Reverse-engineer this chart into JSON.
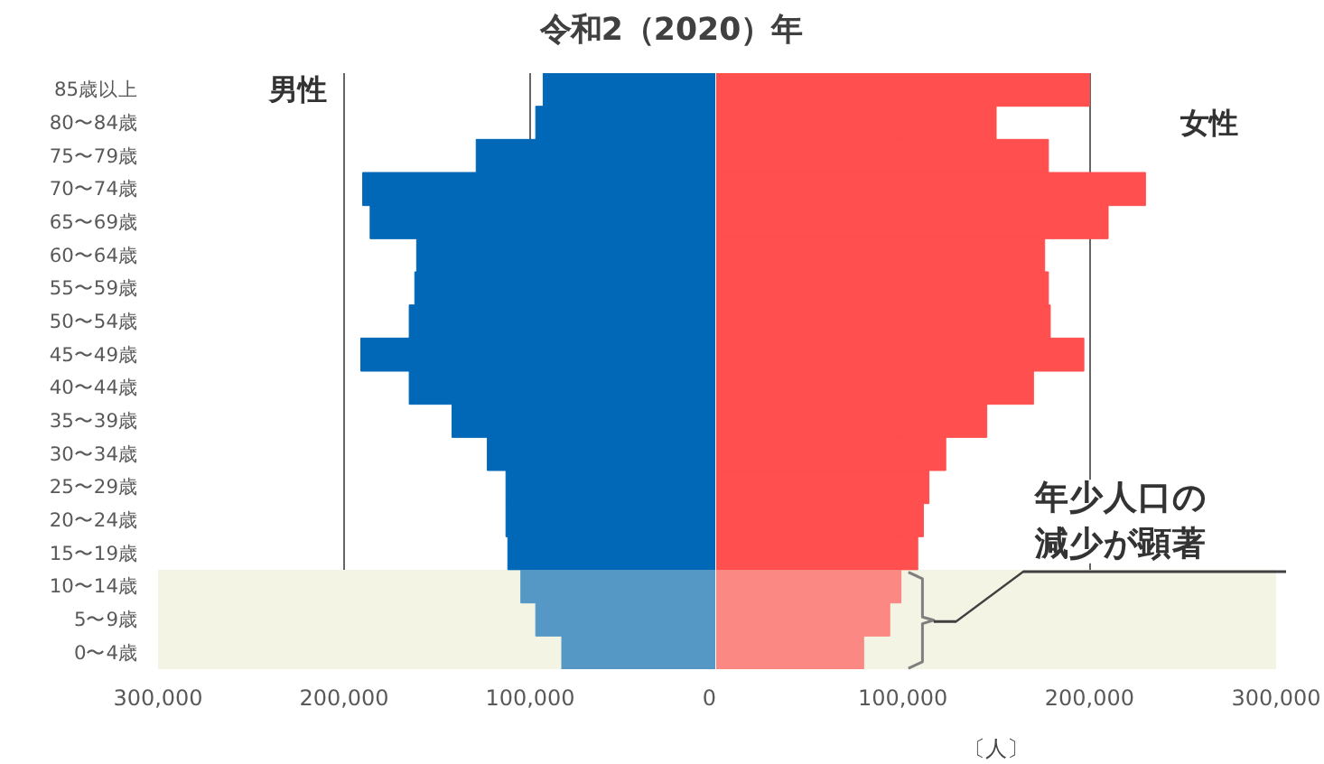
{
  "chart_data": [
    {
      "type": "bar",
      "orientation": "horizontal",
      "title": "令和2（2020）年",
      "categories": [
        "85歳以上",
        "80〜84歳",
        "75〜79歳",
        "70〜74歳",
        "65〜69歳",
        "60〜64歳",
        "55〜59歳",
        "50〜54歳",
        "45〜49歳",
        "40〜44歳",
        "35〜39歳",
        "30〜34歳",
        "25〜29歳",
        "20〜24歳",
        "15〜19歳",
        "10〜14歳",
        "5〜9歳",
        "0〜4歳"
      ],
      "series": [
        {
          "name": "男性",
          "color": "#0068b7",
          "values": [
            93000,
            97000,
            129000,
            190000,
            186000,
            161000,
            162000,
            165000,
            191000,
            165000,
            142000,
            123000,
            113000,
            113000,
            112000,
            105000,
            97000,
            83000
          ]
        }
      ],
      "xlim": [
        300000,
        0
      ],
      "xticks": [
        {
          "value": 300000,
          "label": "300,000"
        },
        {
          "value": 200000,
          "label": "200,000"
        },
        {
          "value": 100000,
          "label": "100,000"
        },
        0
      ],
      "grid": "x",
      "bands": [
        {
          "axis": "y",
          "from": "10〜14歳",
          "to": "0〜4歳",
          "color": "#f3f4e3"
        }
      ]
    },
    {
      "type": "bar",
      "orientation": "horizontal",
      "xlabel": "〔人〕",
      "tick_labels": "x",
      "categories": [
        "85歳以上",
        "80〜84歳",
        "75〜79歳",
        "70〜74歳",
        "65〜69歳",
        "60〜64歳",
        "55〜59歳",
        "50〜54歳",
        "45〜49歳",
        "40〜44歳",
        "35〜39歳",
        "30〜34歳",
        "25〜29歳",
        "20〜24歳",
        "15〜19歳",
        "10〜14歳",
        "5〜9歳",
        "0〜4歳"
      ],
      "series": [
        {
          "name": "女性",
          "color": "#ff4f4f",
          "values": [
            200000,
            150000,
            178000,
            230000,
            210000,
            176000,
            178000,
            179000,
            197000,
            170000,
            145000,
            123000,
            114000,
            111000,
            108000,
            99000,
            93000,
            79000
          ]
        }
      ],
      "xlim": [
        0,
        300000
      ],
      "xticks": [
        {
          "value": 100000,
          "label": "100,000"
        },
        {
          "value": 200000,
          "label": "200,000"
        },
        {
          "value": 300000,
          "label": "300,000"
        }
      ],
      "grid": "x",
      "bands": [
        {
          "axis": "y",
          "from": "10〜14歳",
          "to": "0〜4歳",
          "label": "年少人口の減少が顕著",
          "color": "#f3f4e3"
        }
      ]
    }
  ]
}
